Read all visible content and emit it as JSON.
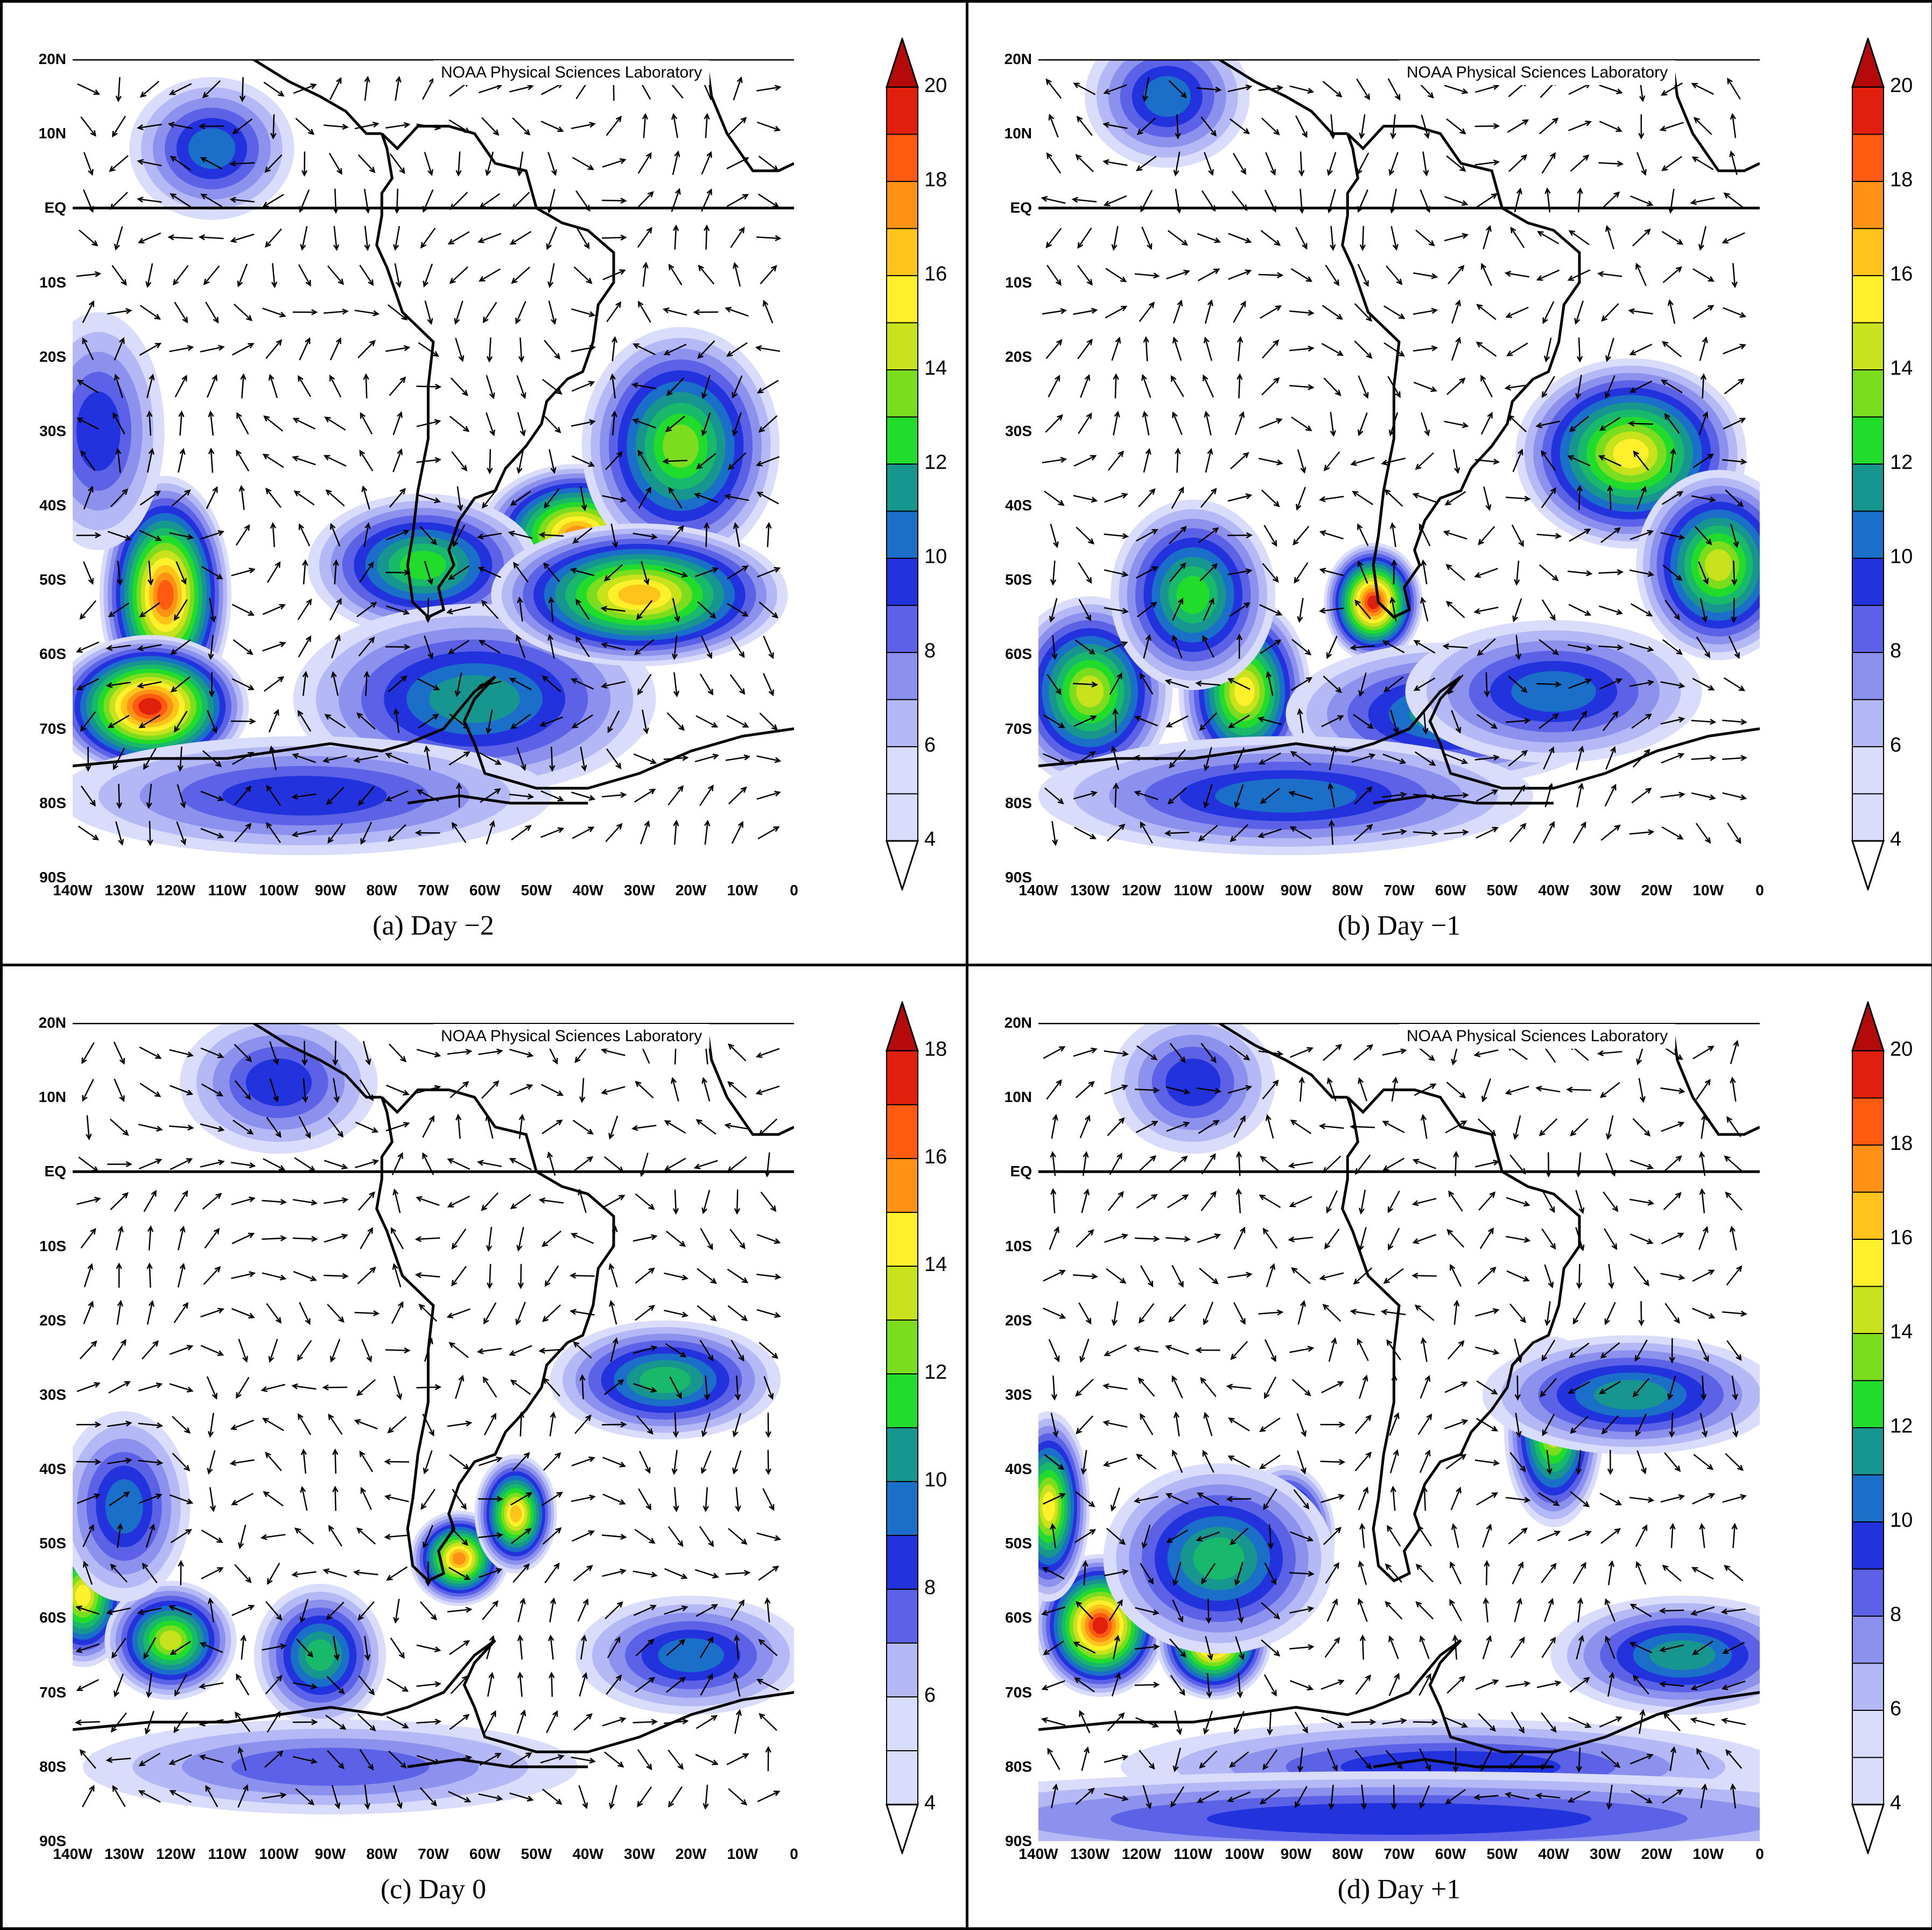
{
  "credit": "NOAA Physical Sciences Laboratory",
  "lat_labels": [
    "20N",
    "10N",
    "EQ",
    "10S",
    "20S",
    "30S",
    "40S",
    "50S",
    "60S",
    "70S",
    "80S",
    "90S"
  ],
  "lon_labels": [
    "140W",
    "130W",
    "120W",
    "110W",
    "100W",
    "90W",
    "80W",
    "70W",
    "60W",
    "50W",
    "40W",
    "30W",
    "20W",
    "10W",
    "0"
  ],
  "colors": {
    "levels": [
      "#ffffff",
      "#d9dcfb",
      "#b4b8f5",
      "#8c91ee",
      "#5b62e6",
      "#2233dd",
      "#1a6fc8",
      "#16968e",
      "#18b96a",
      "#22dc2c",
      "#7cdc1e",
      "#c8e21c",
      "#fff02c",
      "#ffc41a",
      "#ff9114",
      "#ff5a10",
      "#e0200c",
      "#b40a0a"
    ],
    "arrow": "#000000",
    "coast": "#000000"
  },
  "panels": [
    {
      "id": "a",
      "caption": "(a) Day −2",
      "colorbar_ticks": [
        "20",
        "18",
        "16",
        "14",
        "12",
        "10",
        "8",
        "6",
        "4"
      ],
      "blobs": [
        [
          -122,
          -52,
          8,
          10,
          18
        ],
        [
          -125,
          -67,
          12,
          6,
          19
        ],
        [
          -42,
          -44,
          12,
          6,
          17
        ],
        [
          -22,
          -32,
          12,
          10,
          13
        ],
        [
          -72,
          -48,
          14,
          6,
          12
        ],
        [
          -62,
          -66,
          22,
          8,
          10
        ],
        [
          -95,
          -79,
          30,
          5,
          8
        ],
        [
          -113,
          8,
          10,
          6,
          9
        ],
        [
          -30,
          -52,
          18,
          6,
          16
        ],
        [
          -135,
          -30,
          8,
          10,
          8
        ]
      ]
    },
    {
      "id": "b",
      "caption": "(b) Day −1",
      "colorbar_ticks": [
        "20",
        "18",
        "16",
        "14",
        "12",
        "10",
        "8",
        "6",
        "4"
      ],
      "blobs": [
        [
          -75,
          -53,
          6,
          5,
          19
        ],
        [
          -100,
          -65,
          8,
          8,
          15
        ],
        [
          -130,
          -65,
          10,
          8,
          14
        ],
        [
          -25,
          -33,
          14,
          8,
          15
        ],
        [
          -8,
          -48,
          10,
          8,
          14
        ],
        [
          -60,
          -68,
          20,
          6,
          10
        ],
        [
          -110,
          -52,
          10,
          8,
          12
        ],
        [
          -40,
          -65,
          18,
          6,
          9
        ],
        [
          -92,
          -79,
          30,
          5,
          9
        ],
        [
          -115,
          15,
          10,
          6,
          9
        ]
      ]
    },
    {
      "id": "c",
      "caption": "(c) Day 0",
      "colorbar_ticks": [
        "18",
        "16",
        "14",
        "12",
        "10",
        "8",
        "6",
        "4"
      ],
      "blobs": [
        [
          -65,
          -52,
          6,
          4,
          17
        ],
        [
          -54,
          -46,
          5,
          5,
          16
        ],
        [
          -138,
          -57,
          6,
          6,
          15
        ],
        [
          -121,
          -63,
          8,
          5,
          14
        ],
        [
          -25,
          -28,
          14,
          5,
          11
        ],
        [
          -92,
          -65,
          8,
          6,
          11
        ],
        [
          -20,
          -65,
          14,
          5,
          9
        ],
        [
          -130,
          -45,
          8,
          8,
          9
        ],
        [
          -90,
          -80,
          30,
          4,
          7
        ],
        [
          -100,
          12,
          12,
          6,
          8
        ]
      ]
    },
    {
      "id": "d",
      "caption": "(d) Day +1",
      "colorbar_ticks": [
        "20",
        "18",
        "16",
        "14",
        "12",
        "10",
        "8",
        "6",
        "4"
      ],
      "blobs": [
        [
          -128,
          -61,
          8,
          6,
          19
        ],
        [
          -106,
          -63,
          7,
          5,
          18
        ],
        [
          -92,
          -49,
          6,
          6,
          16
        ],
        [
          -40,
          -35,
          6,
          8,
          14
        ],
        [
          -15,
          -65,
          16,
          5,
          10
        ],
        [
          -60,
          -80,
          40,
          4,
          8
        ],
        [
          -70,
          -87,
          70,
          4,
          8
        ],
        [
          -105,
          -52,
          14,
          8,
          11
        ],
        [
          -25,
          -30,
          18,
          5,
          10
        ],
        [
          -138,
          -45,
          5,
          8,
          15
        ],
        [
          -110,
          12,
          10,
          6,
          8
        ]
      ]
    }
  ]
}
